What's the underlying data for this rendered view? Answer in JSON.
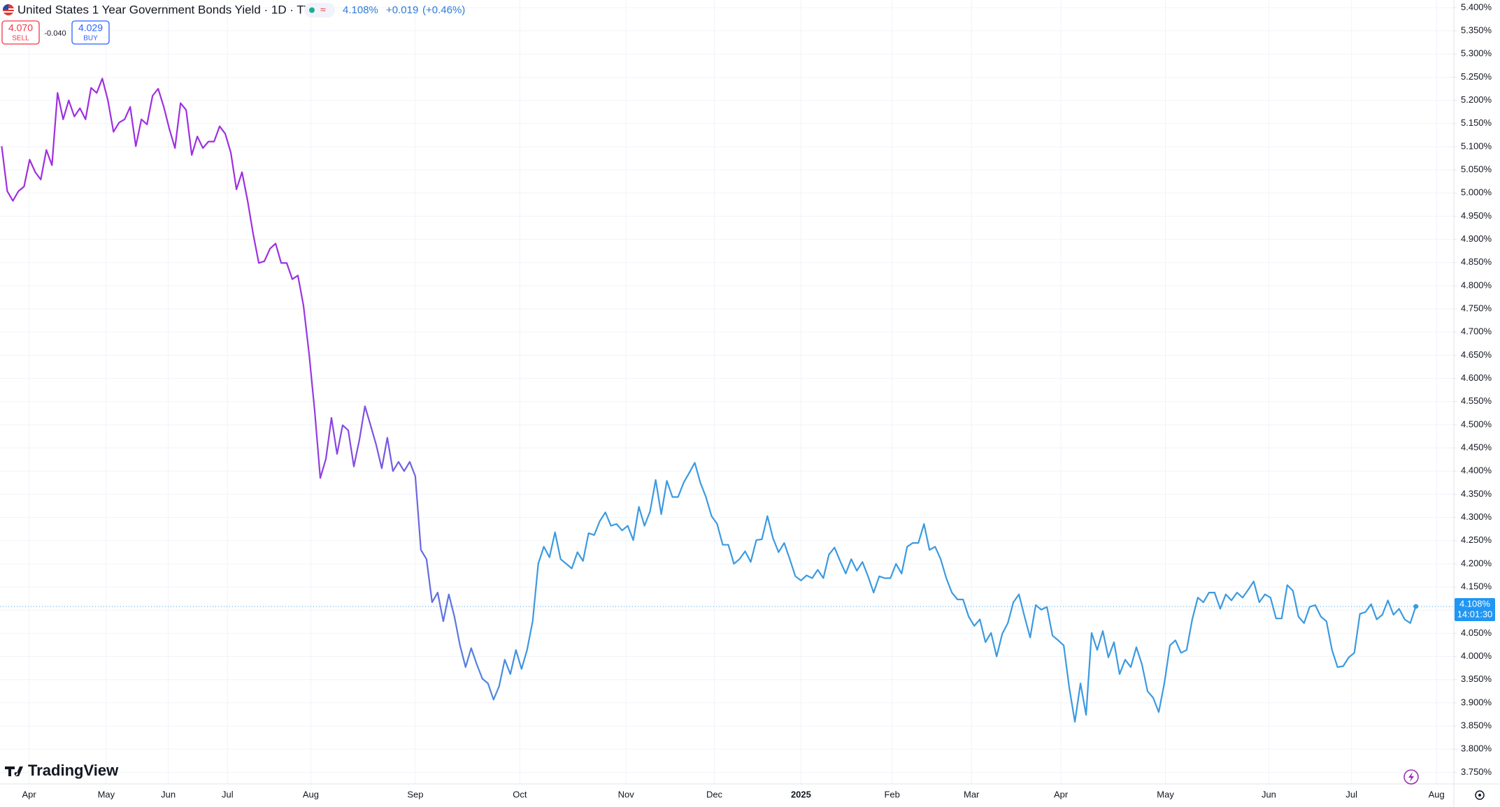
{
  "header": {
    "title": "United States 1 Year Government Bonds Yield · 1D · TVC",
    "price": "4.108%",
    "change": "+0.019",
    "change_pct": "(+0.46%)",
    "sell": "4.070",
    "sell_label": "SELL",
    "spread": "-0.040",
    "buy": "4.029",
    "buy_label": "BUY",
    "countdown": "14:01:30",
    "logo": "TradingView"
  },
  "chart_data": {
    "type": "line",
    "values": [
      5.101,
      5.004,
      4.983,
      5.004,
      5.014,
      5.072,
      5.045,
      5.029,
      5.093,
      5.06,
      5.216,
      5.159,
      5.2,
      5.165,
      5.183,
      5.159,
      5.227,
      5.216,
      5.247,
      5.2,
      5.132,
      5.152,
      5.159,
      5.186,
      5.101,
      5.159,
      5.148,
      5.21,
      5.225,
      5.186,
      5.138,
      5.097,
      5.194,
      5.179,
      5.082,
      5.122,
      5.097,
      5.111,
      5.111,
      5.144,
      5.128,
      5.087,
      5.008,
      5.045,
      4.983,
      4.911,
      4.849,
      4.853,
      4.88,
      4.891,
      4.849,
      4.849,
      4.814,
      4.822,
      4.757,
      4.653,
      4.53,
      4.385,
      4.426,
      4.515,
      4.437,
      4.499,
      4.488,
      4.41,
      4.468,
      4.54,
      4.499,
      4.457,
      4.406,
      4.472,
      4.4,
      4.42,
      4.4,
      4.42,
      4.389,
      4.23,
      4.21,
      4.117,
      4.138,
      4.076,
      4.134,
      4.086,
      4.024,
      3.977,
      4.018,
      3.983,
      3.952,
      3.942,
      3.907,
      3.936,
      3.993,
      3.962,
      4.014,
      3.973,
      4.014,
      4.076,
      4.2,
      4.237,
      4.214,
      4.268,
      4.21,
      4.2,
      4.19,
      4.225,
      4.206,
      4.266,
      4.262,
      4.292,
      4.311,
      4.282,
      4.286,
      4.272,
      4.282,
      4.251,
      4.323,
      4.282,
      4.313,
      4.381,
      4.307,
      4.379,
      4.344,
      4.344,
      4.375,
      4.396,
      4.418,
      4.375,
      4.344,
      4.303,
      4.286,
      4.241,
      4.241,
      4.2,
      4.21,
      4.227,
      4.204,
      4.251,
      4.253,
      4.303,
      4.255,
      4.225,
      4.245,
      4.21,
      4.173,
      4.164,
      4.175,
      4.169,
      4.187,
      4.169,
      4.22,
      4.235,
      4.206,
      4.179,
      4.21,
      4.185,
      4.204,
      4.173,
      4.138,
      4.173,
      4.169,
      4.169,
      4.2,
      4.179,
      4.237,
      4.245,
      4.245,
      4.286,
      4.23,
      4.237,
      4.21,
      4.169,
      4.138,
      4.123,
      4.123,
      4.086,
      4.066,
      4.08,
      4.031,
      4.051,
      4.0,
      4.049,
      4.072,
      4.117,
      4.134,
      4.086,
      4.041,
      4.111,
      4.101,
      4.107,
      4.045,
      4.035,
      4.024,
      3.932,
      3.859,
      3.942,
      3.874,
      4.051,
      4.014,
      4.055,
      3.998,
      4.031,
      3.962,
      3.993,
      3.977,
      4.02,
      3.983,
      3.925,
      3.911,
      3.88,
      3.942,
      4.024,
      4.035,
      4.008,
      4.014,
      4.08,
      4.127,
      4.117,
      4.138,
      4.138,
      4.103,
      4.134,
      4.121,
      4.138,
      4.127,
      4.144,
      4.162,
      4.117,
      4.134,
      4.127,
      4.082,
      4.082,
      4.154,
      4.142,
      4.086,
      4.072,
      4.107,
      4.111,
      4.086,
      4.076,
      4.014,
      3.977,
      3.979,
      3.998,
      4.008,
      4.092,
      4.096,
      4.113,
      4.08,
      4.09,
      4.121,
      4.09,
      4.103,
      4.08,
      4.072,
      4.108
    ],
    "line_colors": [
      "#9f2fe0",
      "#3b9ae0"
    ],
    "xlim": [
      -0.3,
      259.8
    ],
    "xticks": [
      {
        "value": 4.9,
        "label": "Apr"
      },
      {
        "value": 18.7,
        "label": "May"
      },
      {
        "value": 29.8,
        "label": "Jun"
      },
      {
        "value": 40.4,
        "label": "Jul"
      },
      {
        "value": 55.3,
        "label": "Aug"
      },
      {
        "value": 74,
        "label": "Sep"
      },
      {
        "value": 92.7,
        "label": "Oct"
      },
      {
        "value": 111.7,
        "label": "Nov"
      },
      {
        "value": 127.5,
        "label": "Dec"
      },
      {
        "value": 143,
        "label": "2025"
      },
      {
        "value": 159.3,
        "label": "Feb"
      },
      {
        "value": 173.5,
        "label": "Mar"
      },
      {
        "value": 189.5,
        "label": "Apr"
      },
      {
        "value": 208.2,
        "label": "May"
      },
      {
        "value": 226.7,
        "label": "Jun"
      },
      {
        "value": 241.5,
        "label": "Jul"
      },
      {
        "value": 256.7,
        "label": "Aug"
      }
    ],
    "ylim": [
      3.725,
      5.4165
    ],
    "yticks": [
      {
        "value": 3.75,
        "label": "3.750%"
      },
      {
        "value": 3.8,
        "label": "3.800%"
      },
      {
        "value": 3.85,
        "label": "3.850%"
      },
      {
        "value": 3.9,
        "label": "3.900%"
      },
      {
        "value": 3.95,
        "label": "3.950%"
      },
      {
        "value": 4.0,
        "label": "4.000%"
      },
      {
        "value": 4.05,
        "label": "4.050%"
      },
      {
        "value": 4.1,
        "label": "4.100%"
      },
      {
        "value": 4.15,
        "label": "4.150%"
      },
      {
        "value": 4.2,
        "label": "4.200%"
      },
      {
        "value": 4.25,
        "label": "4.250%"
      },
      {
        "value": 4.3,
        "label": "4.300%"
      },
      {
        "value": 4.35,
        "label": "4.350%"
      },
      {
        "value": 4.4,
        "label": "4.400%"
      },
      {
        "value": 4.45,
        "label": "4.450%"
      },
      {
        "value": 4.5,
        "label": "4.500%"
      },
      {
        "value": 4.55,
        "label": "4.550%"
      },
      {
        "value": 4.6,
        "label": "4.600%"
      },
      {
        "value": 4.65,
        "label": "4.650%"
      },
      {
        "value": 4.7,
        "label": "4.700%"
      },
      {
        "value": 4.75,
        "label": "4.750%"
      },
      {
        "value": 4.8,
        "label": "4.800%"
      },
      {
        "value": 4.85,
        "label": "4.850%"
      },
      {
        "value": 4.9,
        "label": "4.900%"
      },
      {
        "value": 4.95,
        "label": "4.950%"
      },
      {
        "value": 5.0,
        "label": "5.000%"
      },
      {
        "value": 5.05,
        "label": "5.050%"
      },
      {
        "value": 5.1,
        "label": "5.100%"
      },
      {
        "value": 5.15,
        "label": "5.150%"
      },
      {
        "value": 5.2,
        "label": "5.200%"
      },
      {
        "value": 5.25,
        "label": "5.250%"
      },
      {
        "value": 5.3,
        "label": "5.300%"
      },
      {
        "value": 5.35,
        "label": "5.350%"
      },
      {
        "value": 5.4,
        "label": "5.400%"
      }
    ],
    "grid": true
  }
}
